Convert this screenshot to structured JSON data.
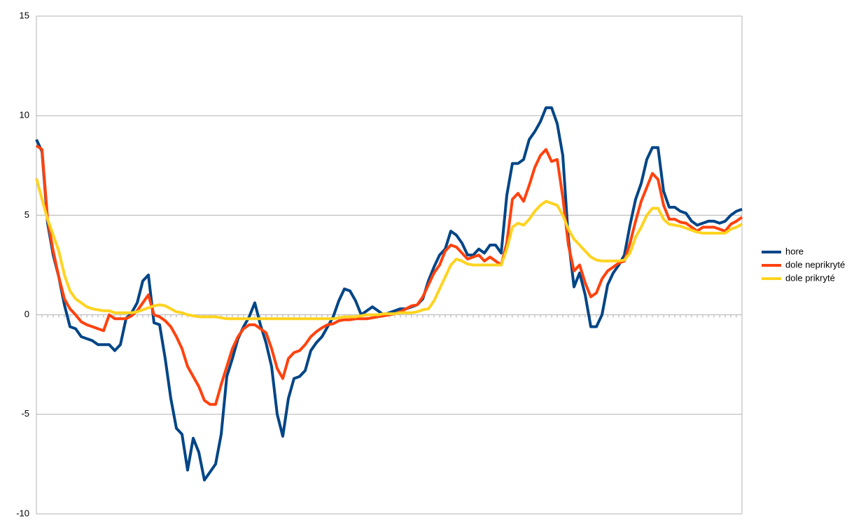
{
  "chart_data": {
    "type": "line",
    "categories": [
      null,
      null,
      null,
      null,
      null,
      null,
      null,
      null,
      null,
      null,
      null,
      null,
      null,
      null,
      null,
      null,
      null,
      null,
      null,
      null,
      null,
      null,
      null,
      null,
      null,
      null,
      null,
      null,
      null,
      null,
      null,
      null,
      null,
      null,
      null,
      null,
      null,
      null,
      null,
      null,
      null,
      null,
      null,
      null,
      null,
      null,
      null,
      null,
      null,
      null,
      null,
      null,
      null,
      null,
      null,
      null,
      null,
      null,
      null,
      null,
      null,
      null,
      null,
      null,
      null,
      null,
      null,
      null,
      null,
      null,
      null,
      null,
      null,
      null,
      null,
      null,
      null,
      null,
      null,
      null,
      null,
      null,
      null,
      null,
      null,
      null,
      null,
      null,
      null,
      null,
      null,
      null,
      null,
      null,
      null,
      null,
      null,
      null,
      null,
      null,
      null,
      null,
      null,
      null,
      null,
      null,
      null,
      null,
      null,
      null,
      null,
      null,
      null,
      null,
      null,
      null,
      null,
      null,
      null,
      null,
      null,
      null,
      null,
      null,
      null,
      null,
      null
    ],
    "series": [
      {
        "name": "hore",
        "color": "#004586",
        "values": [
          8.8,
          8.2,
          4.6,
          3.0,
          1.9,
          0.5,
          -0.6,
          -0.7,
          -1.1,
          -1.2,
          -1.3,
          -1.5,
          -1.5,
          -1.5,
          -1.8,
          -1.5,
          -0.2,
          0.1,
          0.6,
          1.7,
          2.0,
          -0.4,
          -0.5,
          -2.2,
          -4.2,
          -5.7,
          -6.0,
          -7.8,
          -6.2,
          -6.9,
          -8.3,
          -7.9,
          -7.5,
          -6.0,
          -3.1,
          -2.2,
          -1.2,
          -0.6,
          -0.1,
          0.6,
          -0.5,
          -1.4,
          -2.6,
          -5.0,
          -6.1,
          -4.2,
          -3.2,
          -3.1,
          -2.8,
          -1.8,
          -1.4,
          -1.1,
          -0.6,
          -0.1,
          0.7,
          1.3,
          1.2,
          0.7,
          0.0,
          0.2,
          0.4,
          0.2,
          0.0,
          0.1,
          0.2,
          0.3,
          0.3,
          0.4,
          0.5,
          0.8,
          1.7,
          2.4,
          3.0,
          3.3,
          4.2,
          4.0,
          3.6,
          3.0,
          3.0,
          3.3,
          3.1,
          3.5,
          3.5,
          3.1,
          6.0,
          7.6,
          7.6,
          7.8,
          8.8,
          9.2,
          9.7,
          10.4,
          10.4,
          9.6,
          8.0,
          3.8,
          1.4,
          2.1,
          1.0,
          -0.6,
          -0.6,
          0.0,
          1.5,
          2.1,
          2.5,
          3.0,
          4.5,
          5.8,
          6.6,
          7.8,
          8.4,
          8.4,
          6.2,
          5.4,
          5.4,
          5.2,
          5.1,
          4.7,
          4.5,
          4.6,
          4.7,
          4.7,
          4.6,
          4.7,
          5.0,
          5.2,
          5.3
        ]
      },
      {
        "name": "dole neprikryté",
        "color": "#ff420e",
        "values": [
          8.5,
          8.3,
          4.8,
          3.2,
          1.9,
          0.8,
          0.3,
          0.0,
          -0.35,
          -0.5,
          -0.6,
          -0.7,
          -0.8,
          0.0,
          -0.2,
          -0.2,
          -0.2,
          -0.05,
          0.2,
          0.6,
          1.0,
          0.0,
          -0.1,
          -0.3,
          -0.6,
          -1.1,
          -1.7,
          -2.6,
          -3.1,
          -3.6,
          -4.3,
          -4.5,
          -4.5,
          -3.5,
          -2.6,
          -1.7,
          -1.1,
          -0.7,
          -0.5,
          -0.5,
          -0.7,
          -0.9,
          -1.7,
          -2.7,
          -3.2,
          -2.2,
          -1.9,
          -1.8,
          -1.5,
          -1.1,
          -0.85,
          -0.65,
          -0.5,
          -0.45,
          -0.3,
          -0.25,
          -0.25,
          -0.2,
          -0.2,
          -0.2,
          -0.15,
          -0.1,
          -0.05,
          0.0,
          0.05,
          0.15,
          0.3,
          0.45,
          0.5,
          0.9,
          1.5,
          2.1,
          2.5,
          3.2,
          3.5,
          3.4,
          3.1,
          2.8,
          2.9,
          3.0,
          2.7,
          2.9,
          2.7,
          2.5,
          3.6,
          5.8,
          6.1,
          5.7,
          6.5,
          7.4,
          8.0,
          8.3,
          7.7,
          7.8,
          5.9,
          3.5,
          2.2,
          2.5,
          1.6,
          0.9,
          1.1,
          1.8,
          2.2,
          2.4,
          2.6,
          2.7,
          3.6,
          4.7,
          5.7,
          6.4,
          7.1,
          6.8,
          5.5,
          4.8,
          4.8,
          4.65,
          4.6,
          4.4,
          4.2,
          4.4,
          4.4,
          4.4,
          4.3,
          4.2,
          4.55,
          4.7,
          4.9
        ]
      },
      {
        "name": "dole prikryté",
        "color": "#ffd320",
        "values": [
          6.85,
          5.8,
          4.8,
          4.0,
          3.2,
          2.0,
          1.2,
          0.8,
          0.6,
          0.4,
          0.3,
          0.25,
          0.2,
          0.2,
          0.1,
          0.1,
          0.1,
          0.1,
          0.15,
          0.25,
          0.35,
          0.45,
          0.5,
          0.45,
          0.3,
          0.15,
          0.1,
          0.0,
          -0.05,
          -0.1,
          -0.1,
          -0.1,
          -0.1,
          -0.15,
          -0.2,
          -0.2,
          -0.2,
          -0.2,
          -0.2,
          -0.2,
          -0.2,
          -0.2,
          -0.2,
          -0.2,
          -0.2,
          -0.2,
          -0.2,
          -0.2,
          -0.2,
          -0.2,
          -0.2,
          -0.2,
          -0.2,
          -0.2,
          -0.15,
          -0.1,
          -0.1,
          -0.1,
          -0.05,
          0.0,
          0.0,
          0.0,
          0.05,
          0.05,
          0.05,
          0.1,
          0.1,
          0.1,
          0.15,
          0.25,
          0.3,
          0.7,
          1.3,
          1.9,
          2.5,
          2.8,
          2.7,
          2.55,
          2.5,
          2.5,
          2.5,
          2.5,
          2.5,
          2.5,
          3.3,
          4.4,
          4.6,
          4.5,
          4.8,
          5.2,
          5.5,
          5.7,
          5.6,
          5.5,
          5.0,
          4.3,
          3.8,
          3.5,
          3.2,
          2.9,
          2.75,
          2.7,
          2.7,
          2.7,
          2.7,
          2.75,
          3.1,
          3.9,
          4.4,
          5.0,
          5.35,
          5.35,
          4.8,
          4.55,
          4.5,
          4.45,
          4.35,
          4.25,
          4.15,
          4.1,
          4.1,
          4.1,
          4.1,
          4.1,
          4.3,
          4.4,
          4.55
        ]
      }
    ],
    "ylim": [
      -10,
      15
    ],
    "yticks": [
      -10,
      -5,
      0,
      5,
      10,
      15
    ],
    "grid": true,
    "legend": "right"
  }
}
